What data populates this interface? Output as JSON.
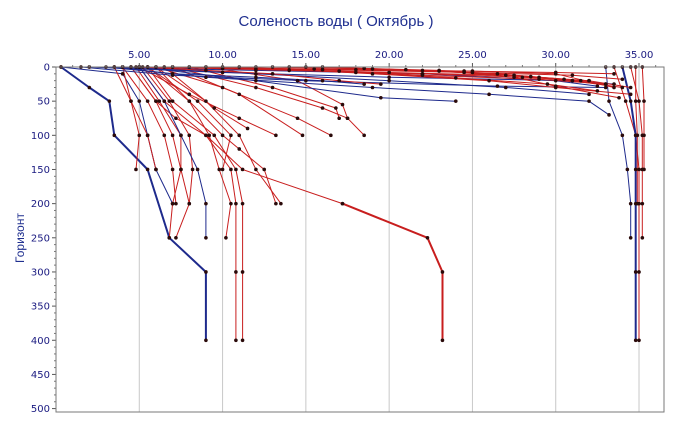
{
  "chart_data": {
    "type": "line",
    "title": "Соленость воды    ( Октябрь )",
    "xlabel": "",
    "ylabel": "Горизонт",
    "xlim": [
      0,
      36.5
    ],
    "ylim": [
      0,
      505
    ],
    "y_inverted": true,
    "x_ticks": [
      5,
      10,
      15,
      20,
      25,
      30,
      35
    ],
    "x_tick_labels": [
      "5.00",
      "10.00",
      "15.00",
      "20.00",
      "25.00",
      "30.00",
      "35.00"
    ],
    "y_ticks": [
      0,
      50,
      100,
      150,
      200,
      250,
      300,
      350,
      400,
      450,
      500
    ],
    "x_axis_position": "top",
    "grid": true,
    "legend": "none",
    "colors": {
      "red": "#c81e1e",
      "blue": "#1e2a8c",
      "marker": "#2a0a0a"
    },
    "series": [
      {
        "color": "red",
        "width": 2,
        "x": [
          17.2,
          22.3,
          23.2,
          23.2
        ],
        "y": [
          200,
          250,
          300,
          400
        ]
      },
      {
        "color": "red",
        "width": 1,
        "x": [
          4.5,
          6.0,
          7.2,
          9.0,
          11.2,
          17.2
        ],
        "y": [
          0,
          50,
          75,
          100,
          150,
          200
        ]
      },
      {
        "color": "blue",
        "width": 2,
        "x": [
          0.3,
          2.0,
          3.2,
          3.5,
          5.5,
          6.8,
          9.0,
          9.0
        ],
        "y": [
          0,
          30,
          50,
          100,
          150,
          250,
          300,
          400
        ]
      },
      {
        "color": "blue",
        "width": 1,
        "x": [
          0.3,
          4.0,
          5.0,
          5.5,
          6.0,
          7.0
        ],
        "y": [
          0,
          10,
          50,
          100,
          150,
          200
        ]
      },
      {
        "color": "red",
        "width": 1,
        "x": [
          5.5,
          7.0,
          9.5,
          10.8,
          11.2,
          11.2,
          11.2
        ],
        "y": [
          0,
          50,
          100,
          150,
          200,
          300,
          400
        ]
      },
      {
        "color": "red",
        "width": 1,
        "x": [
          5.0,
          6.5,
          9.0,
          10.5,
          10.8,
          10.8,
          10.8
        ],
        "y": [
          0,
          50,
          100,
          150,
          200,
          300,
          400
        ]
      },
      {
        "color": "red",
        "width": 1,
        "x": [
          4.8,
          6.2,
          7.5,
          7.5,
          7.0,
          6.8
        ],
        "y": [
          0,
          50,
          100,
          150,
          200,
          250
        ]
      },
      {
        "color": "red",
        "width": 1,
        "x": [
          5.2,
          6.8,
          8.0,
          8.2,
          8.0,
          7.2
        ],
        "y": [
          0,
          50,
          100,
          150,
          200,
          250
        ]
      },
      {
        "color": "red",
        "width": 1,
        "x": [
          6.0,
          8.0,
          9.2,
          9.8,
          10.5,
          10.2
        ],
        "y": [
          0,
          50,
          100,
          150,
          200,
          250
        ]
      },
      {
        "color": "blue",
        "width": 1,
        "x": [
          5.0,
          6.5,
          7.5,
          8.5,
          9.0,
          9.0
        ],
        "y": [
          0,
          50,
          100,
          150,
          200,
          250
        ]
      },
      {
        "color": "red",
        "width": 1,
        "x": [
          5.5,
          8.0,
          10.0,
          11.0,
          12.5,
          13.2
        ],
        "y": [
          0,
          50,
          100,
          120,
          150,
          200
        ]
      },
      {
        "color": "red",
        "width": 1,
        "x": [
          6.0,
          9.0,
          11.0,
          12.0,
          13.5
        ],
        "y": [
          0,
          50,
          100,
          150,
          200
        ]
      },
      {
        "color": "red",
        "width": 1,
        "x": [
          4.0,
          5.5,
          6.5,
          7.0,
          7.2
        ],
        "y": [
          0,
          50,
          100,
          150,
          200
        ]
      },
      {
        "color": "red",
        "width": 1,
        "x": [
          4.5,
          6.0,
          7.0,
          7.5,
          8.0
        ],
        "y": [
          0,
          50,
          100,
          150,
          200
        ]
      },
      {
        "color": "red",
        "width": 1,
        "x": [
          3.5,
          4.5,
          5.5,
          6.0
        ],
        "y": [
          0,
          50,
          100,
          150
        ]
      },
      {
        "color": "red",
        "width": 1,
        "x": [
          5.0,
          8.0,
          11.0,
          13.2
        ],
        "y": [
          0,
          40,
          75,
          100
        ]
      },
      {
        "color": "red",
        "width": 1,
        "x": [
          6.0,
          10.0,
          14.5,
          16.5
        ],
        "y": [
          0,
          30,
          75,
          100
        ]
      },
      {
        "color": "red",
        "width": 1,
        "x": [
          7.0,
          12.0,
          16.0,
          17.5,
          18.5
        ],
        "y": [
          0,
          30,
          60,
          75,
          100
        ]
      },
      {
        "color": "red",
        "width": 1,
        "x": [
          7.0,
          11.0,
          14.8
        ],
        "y": [
          0,
          40,
          100
        ]
      },
      {
        "color": "red",
        "width": 1,
        "x": [
          8.0,
          13.0,
          16.8,
          17.0
        ],
        "y": [
          0,
          30,
          60,
          75
        ]
      },
      {
        "color": "red",
        "width": 1,
        "x": [
          9.0,
          14.5,
          17.2,
          17.5
        ],
        "y": [
          0,
          20,
          55,
          75
        ]
      },
      {
        "color": "red",
        "width": 1,
        "x": [
          4.0,
          4.5,
          5.0,
          4.8
        ],
        "y": [
          0,
          50,
          100,
          150
        ]
      },
      {
        "color": "red",
        "width": 1,
        "x": [
          6.5,
          9.5,
          11.5
        ],
        "y": [
          0,
          60,
          90
        ]
      },
      {
        "color": "red",
        "width": 1,
        "x": [
          5.5,
          8.5,
          10.5,
          10.0
        ],
        "y": [
          0,
          50,
          100,
          150
        ]
      },
      {
        "color": "red",
        "width": 1,
        "x": [
          33.5,
          34.2,
          34.8,
          35.0,
          35.0,
          35.0,
          35.0
        ],
        "y": [
          0,
          50,
          100,
          150,
          200,
          300,
          400
        ]
      },
      {
        "color": "red",
        "width": 1,
        "x": [
          34.5,
          35.0,
          35.2,
          35.2,
          35.2,
          35.2
        ],
        "y": [
          0,
          50,
          100,
          150,
          200,
          250
        ]
      },
      {
        "color": "blue",
        "width": 2,
        "x": [
          34.0,
          34.5,
          34.8,
          34.8,
          34.8,
          34.8,
          34.8
        ],
        "y": [
          0,
          50,
          100,
          150,
          200,
          300,
          400
        ]
      },
      {
        "color": "blue",
        "width": 1,
        "x": [
          33.0,
          33.2,
          34.0,
          34.3,
          34.5,
          34.5
        ],
        "y": [
          0,
          50,
          100,
          150,
          200,
          250
        ]
      },
      {
        "color": "red",
        "width": 1,
        "x": [
          34.8,
          34.8,
          34.9,
          34.9
        ],
        "y": [
          0,
          50,
          100,
          200
        ]
      },
      {
        "color": "red",
        "width": 1,
        "x": [
          35.2,
          35.3,
          35.3,
          35.3
        ],
        "y": [
          0,
          50,
          100,
          150
        ]
      },
      {
        "color": "blue",
        "width": 1,
        "x": [
          2.0,
          10.0,
          20.0,
          31.0,
          33.5
        ],
        "y": [
          0,
          8,
          15,
          20,
          25
        ]
      },
      {
        "color": "blue",
        "width": 1,
        "x": [
          2.0,
          12.0,
          22.0,
          30.0,
          32.5
        ],
        "y": [
          0,
          5,
          10,
          20,
          28
        ]
      },
      {
        "color": "blue",
        "width": 1,
        "x": [
          1.5,
          7.0,
          15.0,
          26.5,
          33.0
        ],
        "y": [
          0,
          12,
          20,
          28,
          30
        ]
      },
      {
        "color": "blue",
        "width": 1,
        "x": [
          3.0,
          9.0,
          19.0,
          26.0,
          32.0,
          33.2
        ],
        "y": [
          0,
          15,
          30,
          40,
          50,
          70
        ]
      },
      {
        "color": "blue",
        "width": 1,
        "x": [
          4.0,
          12.0,
          20.0,
          27.0,
          32.0
        ],
        "y": [
          0,
          10,
          20,
          30,
          40
        ]
      },
      {
        "color": "blue",
        "width": 1,
        "x": [
          5.0,
          12.0,
          19.5,
          24.0
        ],
        "y": [
          0,
          20,
          45,
          50
        ]
      },
      {
        "color": "blue",
        "width": 1,
        "x": [
          3.5,
          7.0,
          12.0,
          16.0,
          18.5
        ],
        "y": [
          0,
          10,
          15,
          20,
          25
        ]
      },
      {
        "color": "red",
        "width": 1,
        "x": [
          4.0,
          10.0,
          18.0,
          25.0,
          30.0,
          33.5
        ],
        "y": [
          0,
          2,
          4,
          6,
          10,
          30
        ]
      },
      {
        "color": "red",
        "width": 1,
        "x": [
          5.0,
          12.0,
          20.0,
          27.0,
          31.0,
          34.0
        ],
        "y": [
          0,
          3,
          8,
          12,
          20,
          30
        ]
      },
      {
        "color": "red",
        "width": 1,
        "x": [
          6.0,
          14.0,
          22.0,
          28.0,
          32.0,
          34.5
        ],
        "y": [
          0,
          5,
          10,
          15,
          20,
          30
        ]
      },
      {
        "color": "red",
        "width": 1,
        "x": [
          7.0,
          15.5,
          24.5,
          30.0,
          33.5
        ],
        "y": [
          0,
          3,
          6,
          8,
          10
        ]
      },
      {
        "color": "red",
        "width": 1,
        "x": [
          8.0,
          16.0,
          25.0,
          31.0,
          34.0
        ],
        "y": [
          0,
          4,
          8,
          12,
          18
        ]
      },
      {
        "color": "red",
        "width": 1,
        "x": [
          9.0,
          17.0,
          22.0,
          29.0,
          33.0
        ],
        "y": [
          0,
          6,
          12,
          18,
          25
        ]
      },
      {
        "color": "red",
        "width": 1,
        "x": [
          10.0,
          18.0,
          24.0,
          29.5,
          32.5
        ],
        "y": [
          0,
          8,
          16,
          25,
          35
        ]
      },
      {
        "color": "red",
        "width": 1,
        "x": [
          11.0,
          19.0,
          26.0,
          30.0,
          34.5
        ],
        "y": [
          0,
          10,
          20,
          30,
          40
        ]
      },
      {
        "color": "red",
        "width": 1,
        "x": [
          12.0,
          18.5,
          23.0,
          27.5,
          30.0,
          33.8
        ],
        "y": [
          0,
          2,
          5,
          15,
          28,
          45
        ]
      },
      {
        "color": "red",
        "width": 1,
        "x": [
          5.0,
          9.0,
          13.0,
          17.0,
          19.5
        ],
        "y": [
          0,
          5,
          10,
          20,
          25
        ]
      },
      {
        "color": "red",
        "width": 1,
        "x": [
          13.0,
          19.0,
          24.5,
          29.0,
          32.0
        ],
        "y": [
          0,
          3,
          8,
          15,
          20
        ]
      },
      {
        "color": "red",
        "width": 1,
        "x": [
          14.0,
          21.0,
          26.5,
          30.5,
          33.0
        ],
        "y": [
          0,
          4,
          10,
          18,
          25
        ]
      },
      {
        "color": "red",
        "width": 1,
        "x": [
          15.0,
          22.0,
          27.5,
          31.5
        ],
        "y": [
          0,
          5,
          12,
          20
        ]
      },
      {
        "color": "red",
        "width": 1,
        "x": [
          16.0,
          23.0,
          28.5
        ],
        "y": [
          0,
          6,
          14
        ]
      }
    ]
  }
}
